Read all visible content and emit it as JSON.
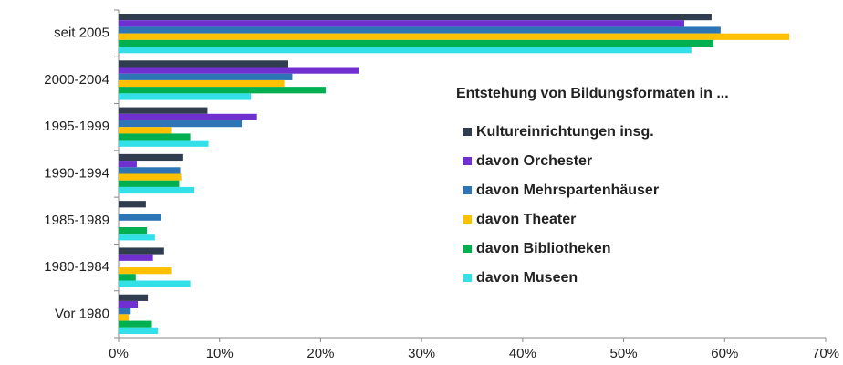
{
  "chart_data": {
    "type": "hbar",
    "legend_title": "Entstehung von Bildungsformaten in ...",
    "categories": [
      "seit 2005",
      "2000-2004",
      "1995-1999",
      "1990-1994",
      "1985-1989",
      "1980-1984",
      "Vor 1980"
    ],
    "series": [
      {
        "name": "Kultureinrichtungen insg.",
        "color": "#2f3d4f",
        "values": [
          58.7,
          16.8,
          8.8,
          6.4,
          2.7,
          4.5,
          2.9
        ]
      },
      {
        "name": "davon Orchester",
        "color": "#7030d0",
        "values": [
          56.0,
          23.8,
          13.7,
          1.8,
          0,
          3.4,
          1.9
        ]
      },
      {
        "name": "davon Mehrspartenhäuser",
        "color": "#2e75b6",
        "values": [
          59.6,
          17.2,
          12.2,
          6.1,
          4.2,
          0,
          1.2
        ]
      },
      {
        "name": "davon Theater",
        "color": "#ffc000",
        "values": [
          66.4,
          16.4,
          5.2,
          6.2,
          0,
          5.2,
          1.0
        ]
      },
      {
        "name": "davon Bibliotheken",
        "color": "#00b050",
        "values": [
          58.9,
          20.5,
          7.1,
          6.0,
          2.8,
          1.7,
          3.3
        ]
      },
      {
        "name": "davon Museen",
        "color": "#33e0e8",
        "values": [
          56.7,
          13.1,
          8.9,
          7.5,
          3.6,
          7.1,
          3.9
        ]
      }
    ],
    "xlim": [
      0,
      70
    ],
    "xticks": [
      {
        "value": 0,
        "label": "0%"
      },
      {
        "value": 10,
        "label": "10%"
      },
      {
        "value": 20,
        "label": "20%"
      },
      {
        "value": 30,
        "label": "30%"
      },
      {
        "value": 40,
        "label": "40%"
      },
      {
        "value": 50,
        "label": "50%"
      },
      {
        "value": 60,
        "label": "60%"
      },
      {
        "value": 70,
        "label": "70%"
      }
    ],
    "grid": false,
    "legend": "right"
  }
}
